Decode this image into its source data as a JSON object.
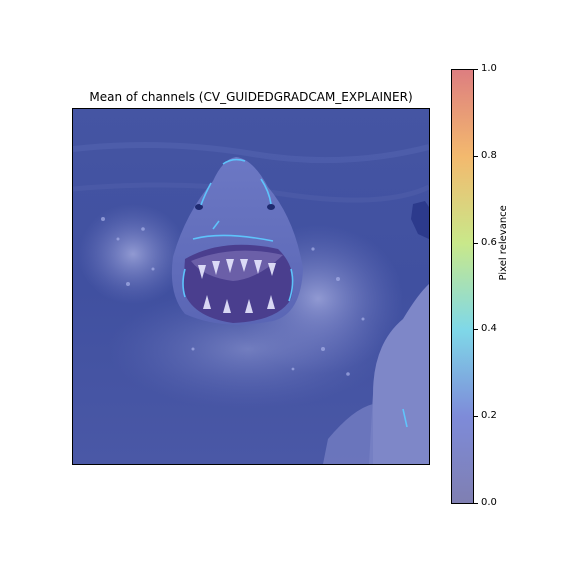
{
  "chart_data": {
    "type": "heatmap",
    "title": "Mean of channels (CV_GUIDEDGRADCAM_EXPLAINER)",
    "xlabel": "",
    "ylabel": "",
    "image_subject": "shark",
    "colorbar": {
      "label": "Pixel relevance",
      "range": [
        0.0,
        1.0
      ],
      "ticks": [
        "0.0",
        "0.2",
        "0.4",
        "0.6",
        "0.8",
        "1.0"
      ],
      "colormap": "jet",
      "alpha": 0.5
    }
  }
}
